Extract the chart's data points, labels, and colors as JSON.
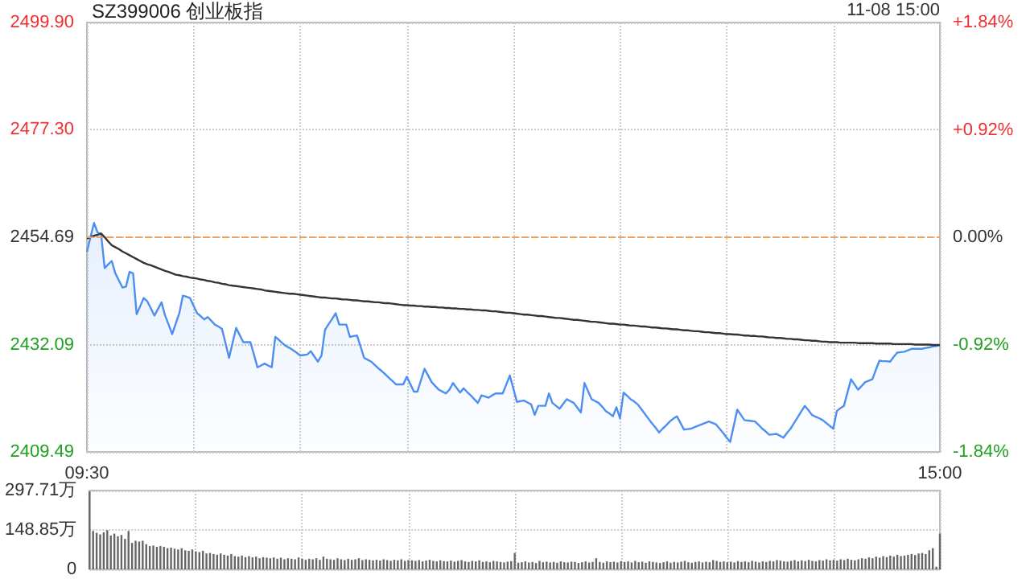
{
  "chart_data": [
    {
      "type": "area",
      "title": "SZ399006 创业板指",
      "annotations": [
        "11-08 15:00"
      ],
      "categories": [
        "09:30",
        null,
        null,
        null,
        null,
        null,
        null,
        null,
        null,
        null,
        null,
        null,
        null,
        null,
        null,
        null,
        null,
        null,
        null,
        null,
        null,
        null,
        null,
        null,
        null,
        null,
        null,
        null,
        null,
        null,
        null,
        null,
        null,
        null,
        null,
        null,
        null,
        null,
        null,
        null,
        null,
        null,
        null,
        null,
        null,
        null,
        null,
        null,
        null,
        null,
        null,
        null,
        null,
        null,
        null,
        null,
        null,
        null,
        null,
        null,
        null,
        null,
        null,
        null,
        null,
        null,
        null,
        null,
        null,
        null,
        null,
        null,
        null,
        null,
        null,
        null,
        null,
        null,
        null,
        null,
        null,
        null,
        null,
        null,
        null,
        null,
        null,
        null,
        null,
        null,
        null,
        null,
        null,
        null,
        null,
        null,
        null,
        null,
        null,
        null,
        null,
        null,
        null,
        null,
        null,
        null,
        null,
        null,
        null,
        null,
        null,
        null,
        null,
        null,
        null,
        null,
        null,
        null,
        null,
        null,
        null,
        null,
        null,
        null,
        null,
        null,
        null,
        null,
        null,
        null,
        null,
        null,
        null,
        null,
        null,
        null,
        null,
        null,
        null,
        null,
        null,
        null,
        null,
        null,
        null,
        null,
        null,
        null,
        null,
        null,
        null,
        null,
        null,
        null,
        null,
        null,
        null,
        null,
        null,
        null,
        null,
        null,
        null,
        null,
        null,
        null,
        null,
        null,
        null,
        null,
        null,
        null,
        null,
        null,
        null,
        null,
        null,
        null,
        null,
        null,
        null,
        null,
        null,
        null,
        null,
        null,
        null,
        null,
        null,
        null,
        null,
        null,
        null,
        null,
        null,
        null,
        null,
        null,
        null,
        null,
        null,
        null,
        null,
        null,
        null,
        null,
        null,
        null,
        null,
        null,
        null,
        null,
        null,
        null,
        null,
        null,
        null,
        null,
        null,
        null,
        null,
        null,
        null,
        null,
        null,
        null,
        null,
        null,
        null,
        null,
        null,
        null,
        null,
        null,
        null,
        null,
        null,
        null,
        null,
        null,
        "15:00"
      ],
      "ylim": [
        2409.49,
        2499.9
      ],
      "yticks": [
        {
          "value": 2409.49,
          "label": "2409.49"
        },
        {
          "value": 2432.09,
          "label": "2432.09"
        },
        {
          "value": 2454.69,
          "label": "2454.69"
        },
        {
          "value": 2477.3,
          "label": "2477.30"
        },
        {
          "value": 2499.9,
          "label": "2499.90"
        }
      ],
      "y2lim": [
        -1.84,
        1.84
      ],
      "y2ticks": [
        {
          "value": -1.84,
          "label": "-1.84%"
        },
        {
          "value": -0.92,
          "label": "-0.92%"
        },
        {
          "value": 0,
          "label": "0.00%"
        },
        {
          "value": 0.92,
          "label": "+0.92%"
        },
        {
          "value": 1.84,
          "label": "+1.84%"
        }
      ],
      "grid": true,
      "marker": "none",
      "ref_lines": [
        {
          "axis": "y",
          "value": 2454.69,
          "color": "#f5a05a",
          "line_style": "dashed"
        }
      ],
      "series": [
        {
          "color": "#4d8ff0",
          "values": [
            2451.6,
            2454.7,
            2457.7,
            2455.7,
            2455.3,
            2448.2,
            2449.0,
            2449.7,
            2447.1,
            2445.6,
            2444.1,
            2444.3,
            2447.4,
            2447.1,
            2438.5,
            2440.2,
            2441.9,
            2441.2,
            2439.7,
            2438.2,
            2439.6,
            2441.0,
            2438.2,
            2436.3,
            2434.3,
            2436.5,
            2438.7,
            2442.4,
            2442.2,
            2441.9,
            2440.3,
            2438.7,
            2438.1,
            2437.4,
            2437.9,
            2437.1,
            2436.3,
            2435.9,
            2435.4,
            2432.4,
            2429.3,
            2432.5,
            2435.6,
            2434.1,
            2432.6,
            2432.6,
            2432.6,
            2430.0,
            2427.3,
            2427.7,
            2428.1,
            2427.7,
            2427.3,
            2433.7,
            2433.1,
            2432.4,
            2431.8,
            2431.4,
            2430.9,
            2430.4,
            2429.8,
            2429.9,
            2430.0,
            2430.7,
            2429.6,
            2428.5,
            2429.8,
            2435.2,
            2436.4,
            2437.5,
            2438.7,
            2436.3,
            2436.3,
            2436.3,
            2433.7,
            2433.9,
            2434.0,
            2431.7,
            2429.3,
            2428.9,
            2428.5,
            2427.8,
            2427.1,
            2426.5,
            2425.8,
            2425.1,
            2424.4,
            2423.7,
            2423.7,
            2423.7,
            2425.3,
            2423.8,
            2422.2,
            2422.2,
            2424.6,
            2427.0,
            2425.6,
            2424.2,
            2423.4,
            2422.6,
            2422.2,
            2421.8,
            2422.6,
            2424.0,
            2423.0,
            2422.0,
            2422.9,
            2422.1,
            2421.4,
            2420.6,
            2419.8,
            2421.4,
            2421.2,
            2420.9,
            2421.4,
            2421.8,
            2421.8,
            2421.8,
            2423.7,
            2425.6,
            2422.8,
            2420.0,
            2420.2,
            2420.3,
            2419.9,
            2419.5,
            2417.3,
            2419.2,
            2419.2,
            2419.2,
            2421.8,
            2419.8,
            2419.2,
            2418.6,
            2419.6,
            2420.6,
            2420.2,
            2419.8,
            2418.8,
            2417.8,
            2424.0,
            2422.3,
            2420.6,
            2420.2,
            2419.8,
            2419.0,
            2418.1,
            2417.6,
            2417.0,
            2418.9,
            2416.6,
            2422.0,
            2421.3,
            2420.6,
            2420.1,
            2419.5,
            2418.5,
            2417.5,
            2416.5,
            2415.5,
            2414.6,
            2413.6,
            2414.4,
            2415.1,
            2415.9,
            2416.5,
            2417.0,
            2415.6,
            2414.2,
            2414.3,
            2414.4,
            2414.7,
            2415.0,
            2415.3,
            2415.6,
            2415.9,
            2415.6,
            2415.3,
            2414.4,
            2413.5,
            2412.5,
            2411.6,
            2415.0,
            2418.4,
            2417.3,
            2416.2,
            2416.1,
            2416.0,
            2415.9,
            2415.2,
            2414.4,
            2413.8,
            2413.1,
            2413.2,
            2413.3,
            2412.9,
            2412.5,
            2413.5,
            2414.4,
            2415.6,
            2416.8,
            2418.0,
            2419.2,
            2418.3,
            2417.3,
            2416.9,
            2416.6,
            2416.2,
            2415.6,
            2415.0,
            2414.4,
            2418.1,
            2418.7,
            2419.2,
            2422.0,
            2424.8,
            2423.7,
            2422.6,
            2423.4,
            2424.2,
            2424.5,
            2424.8,
            2426.8,
            2428.7,
            2428.6,
            2428.6,
            2428.5,
            2429.5,
            2430.4,
            2430.5,
            2430.6,
            2430.9,
            2431.2,
            2431.2,
            2431.2,
            2431.2,
            2431.4,
            2431.5,
            2431.7,
            2431.8,
            2432.0
          ]
        },
        {
          "type": "line",
          "color": "#333333",
          "values": [
            2454.4,
            2454.7,
            2455.0,
            2455.2,
            2455.5,
            2454.7,
            2453.8,
            2453.0,
            2452.6,
            2452.2,
            2451.7,
            2451.3,
            2450.9,
            2450.5,
            2450.1,
            2449.7,
            2449.3,
            2449.0,
            2448.8,
            2448.5,
            2448.2,
            2447.9,
            2447.6,
            2447.4,
            2447.1,
            2446.8,
            2446.7,
            2446.5,
            2446.4,
            2446.2,
            2446.1,
            2446.0,
            2445.8,
            2445.7,
            2445.5,
            2445.4,
            2445.2,
            2445.1,
            2444.9,
            2444.8,
            2444.6,
            2444.5,
            2444.4,
            2444.3,
            2444.2,
            2444.1,
            2444.0,
            2443.9,
            2443.8,
            2443.7,
            2443.5,
            2443.4,
            2443.3,
            2443.2,
            2443.1,
            2443.0,
            2442.9,
            2442.8,
            2442.8,
            2442.7,
            2442.6,
            2442.5,
            2442.4,
            2442.3,
            2442.2,
            2442.1,
            2442.0,
            2442.0,
            2441.9,
            2441.8,
            2441.8,
            2441.7,
            2441.6,
            2441.6,
            2441.5,
            2441.4,
            2441.4,
            2441.3,
            2441.2,
            2441.2,
            2441.1,
            2441.0,
            2441.0,
            2440.9,
            2440.8,
            2440.8,
            2440.7,
            2440.6,
            2440.5,
            2440.4,
            2440.4,
            2440.3,
            2440.3,
            2440.2,
            2440.2,
            2440.1,
            2440.1,
            2440.0,
            2440.0,
            2439.9,
            2439.9,
            2439.8,
            2439.8,
            2439.7,
            2439.7,
            2439.6,
            2439.6,
            2439.5,
            2439.5,
            2439.4,
            2439.4,
            2439.3,
            2439.3,
            2439.2,
            2439.1,
            2439.1,
            2439.0,
            2438.9,
            2438.8,
            2438.8,
            2438.7,
            2438.6,
            2438.5,
            2438.4,
            2438.4,
            2438.3,
            2438.2,
            2438.1,
            2438.1,
            2438.0,
            2437.9,
            2437.8,
            2437.7,
            2437.7,
            2437.6,
            2437.5,
            2437.4,
            2437.3,
            2437.3,
            2437.2,
            2437.1,
            2437.0,
            2436.9,
            2436.9,
            2436.8,
            2436.7,
            2436.6,
            2436.5,
            2436.5,
            2436.4,
            2436.3,
            2436.3,
            2436.2,
            2436.1,
            2436.1,
            2436.0,
            2435.9,
            2435.9,
            2435.8,
            2435.7,
            2435.7,
            2435.6,
            2435.5,
            2435.5,
            2435.4,
            2435.3,
            2435.3,
            2435.2,
            2435.1,
            2435.1,
            2435.0,
            2434.9,
            2434.9,
            2434.8,
            2434.7,
            2434.7,
            2434.6,
            2434.5,
            2434.5,
            2434.4,
            2434.3,
            2434.3,
            2434.2,
            2434.2,
            2434.1,
            2434.0,
            2434.0,
            2433.9,
            2433.9,
            2433.8,
            2433.8,
            2433.7,
            2433.6,
            2433.6,
            2433.5,
            2433.5,
            2433.4,
            2433.3,
            2433.3,
            2433.2,
            2433.2,
            2433.1,
            2433.0,
            2433.0,
            2432.9,
            2432.9,
            2432.8,
            2432.7,
            2432.7,
            2432.6,
            2432.6,
            2432.6,
            2432.5,
            2432.5,
            2432.5,
            2432.5,
            2432.5,
            2432.4,
            2432.4,
            2432.4,
            2432.4,
            2432.4,
            2432.3,
            2432.3,
            2432.3,
            2432.3,
            2432.3,
            2432.2,
            2432.2,
            2432.2,
            2432.2,
            2432.2,
            2432.2,
            2432.1,
            2432.1,
            2432.1,
            2432.1,
            2432.1,
            2432.0,
            2432.0,
            2432.0
          ]
        }
      ]
    },
    {
      "type": "bar",
      "tick_labels": "y",
      "grid": true,
      "categories": [
        null,
        null,
        null,
        null,
        null,
        null,
        null,
        null,
        null,
        null,
        null,
        null,
        null,
        null,
        null,
        null,
        null,
        null,
        null,
        null,
        null,
        null,
        null,
        null,
        null,
        null,
        null,
        null,
        null,
        null,
        null,
        null,
        null,
        null,
        null,
        null,
        null,
        null,
        null,
        null,
        null,
        null,
        null,
        null,
        null,
        null,
        null,
        null,
        null,
        null,
        null,
        null,
        null,
        null,
        null,
        null,
        null,
        null,
        null,
        null,
        null,
        null,
        null,
        null,
        null,
        null,
        null,
        null,
        null,
        null,
        null,
        null,
        null,
        null,
        null,
        null,
        null,
        null,
        null,
        null,
        null,
        null,
        null,
        null,
        null,
        null,
        null,
        null,
        null,
        null,
        null,
        null,
        null,
        null,
        null,
        null,
        null,
        null,
        null,
        null,
        null,
        null,
        null,
        null,
        null,
        null,
        null,
        null,
        null,
        null,
        null,
        null,
        null,
        null,
        null,
        null,
        null,
        null,
        null,
        null,
        null,
        null,
        null,
        null,
        null,
        null,
        null,
        null,
        null,
        null,
        null,
        null,
        null,
        null,
        null,
        null,
        null,
        null,
        null,
        null,
        null,
        null,
        null,
        null,
        null,
        null,
        null,
        null,
        null,
        null,
        null,
        null,
        null,
        null,
        null,
        null,
        null,
        null,
        null,
        null,
        null,
        null,
        null,
        null,
        null,
        null,
        null,
        null,
        null,
        null,
        null,
        null,
        null,
        null,
        null,
        null,
        null,
        null,
        null,
        null,
        null,
        null,
        null,
        null,
        null,
        null,
        null,
        null,
        null,
        null,
        null,
        null,
        null,
        null,
        null,
        null,
        null,
        null,
        null,
        null,
        null,
        null,
        null,
        null,
        null,
        null,
        null,
        null,
        null,
        null,
        null,
        null,
        null,
        null,
        null,
        null,
        null,
        null,
        null,
        null,
        null,
        null,
        null,
        null,
        null,
        null,
        null,
        null,
        null,
        null,
        null,
        null,
        null,
        null,
        null,
        null,
        null,
        null,
        null,
        null,
        null
      ],
      "ylim": [
        0,
        297.71
      ],
      "yticks": [
        0,
        {
          "value": 148.85,
          "label": "148.85万"
        },
        {
          "value": 297.71,
          "label": "297.71万"
        }
      ],
      "series": [
        {
          "color": "#666666",
          "values": [
            295,
            145,
            138,
            132,
            140,
            148,
            128,
            135,
            125,
            130,
            115,
            145,
            100,
            108,
            105,
            108,
            95,
            88,
            90,
            85,
            88,
            85,
            80,
            82,
            78,
            75,
            80,
            72,
            70,
            75,
            68,
            65,
            70,
            60,
            62,
            58,
            55,
            60,
            55,
            52,
            58,
            50,
            48,
            52,
            46,
            50,
            45,
            48,
            42,
            46,
            44,
            42,
            45,
            40,
            44,
            38,
            42,
            40,
            38,
            45,
            40,
            36,
            40,
            38,
            42,
            36,
            48,
            40,
            38,
            36,
            42,
            38,
            35,
            40,
            36,
            38,
            42,
            35,
            38,
            36,
            34,
            36,
            33,
            38,
            35,
            32,
            36,
            34,
            38,
            32,
            35,
            34,
            32,
            35,
            30,
            33,
            36,
            32,
            30,
            34,
            31,
            30,
            33,
            29,
            32,
            35,
            30,
            28,
            32,
            30,
            34,
            28,
            30,
            27,
            32,
            30,
            28,
            26,
            29,
            31,
            62,
            25,
            27,
            30,
            26,
            28,
            24,
            32,
            27,
            29,
            26,
            28,
            25,
            30,
            27,
            26,
            29,
            28,
            24,
            27,
            30,
            26,
            28,
            42,
            28,
            25,
            30,
            27,
            29,
            26,
            31,
            28,
            30,
            26,
            32,
            27,
            29,
            25,
            30,
            28,
            26,
            24,
            27,
            30,
            25,
            28,
            26,
            29,
            32,
            27,
            25,
            28,
            30,
            26,
            29,
            27,
            35,
            32,
            28,
            30,
            27,
            29,
            26,
            31,
            28,
            30,
            27,
            32,
            29,
            26,
            30,
            28,
            32,
            30,
            35,
            33,
            30,
            29,
            32,
            35,
            30,
            34,
            31,
            36,
            32,
            30,
            35,
            33,
            38,
            34,
            36,
            33,
            38,
            35,
            40,
            36,
            34,
            38,
            42,
            40,
            45,
            42,
            48,
            44,
            50,
            46,
            52,
            48,
            55,
            50,
            52,
            55,
            58,
            54,
            60,
            62,
            58,
            72,
            80,
            10,
            135
          ]
        }
      ]
    }
  ]
}
